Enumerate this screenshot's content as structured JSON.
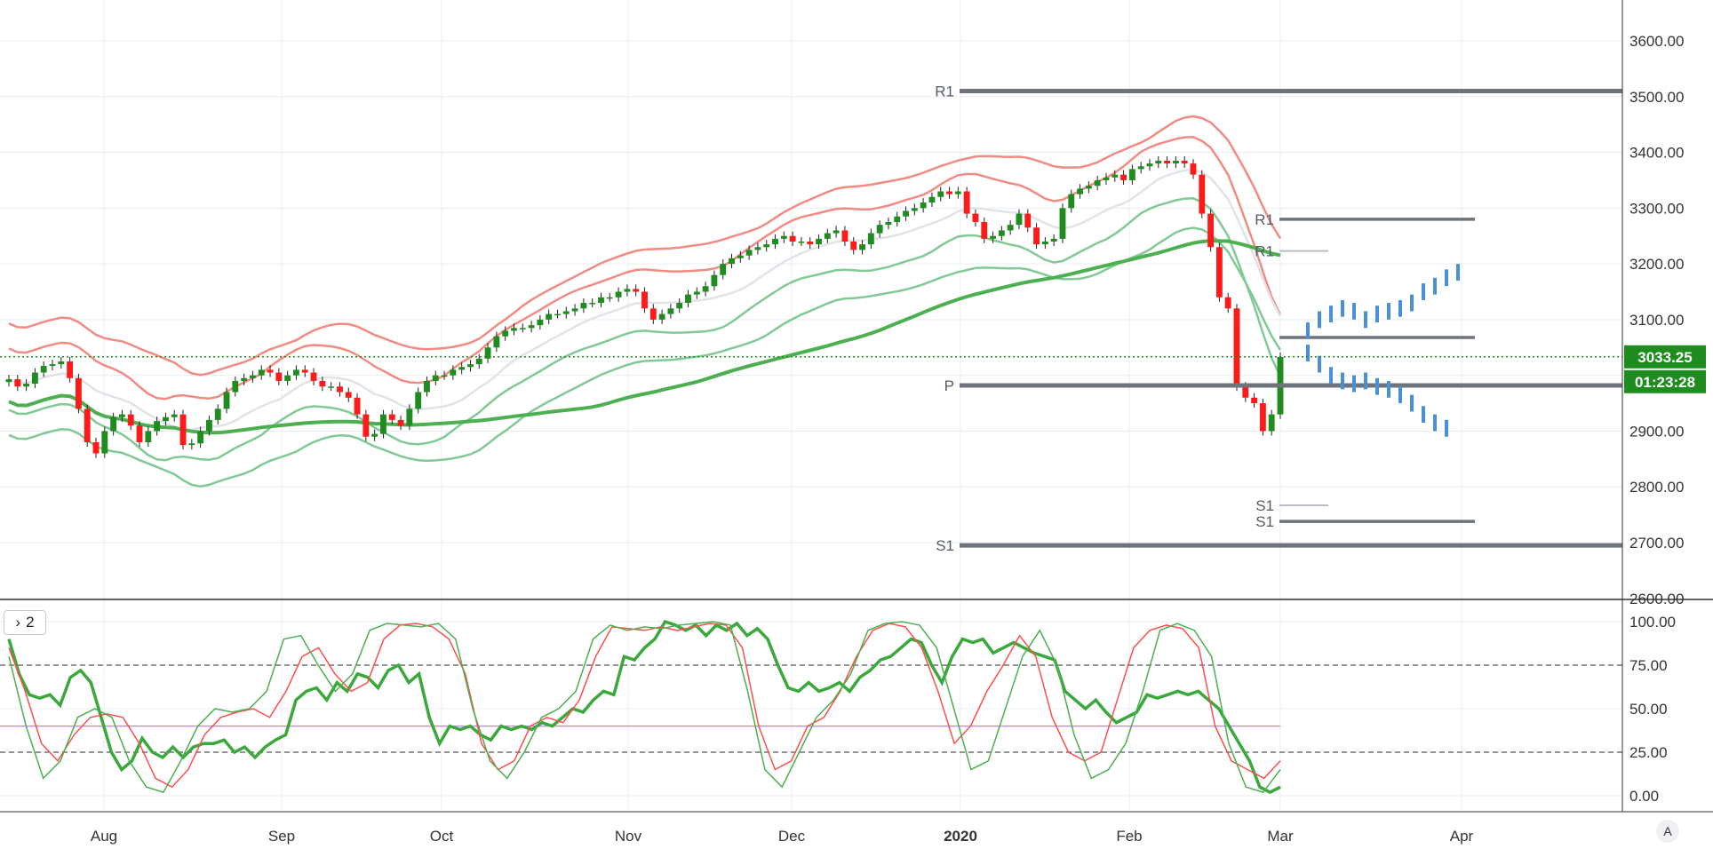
{
  "ui": {
    "pane_toggle_glyph": "›",
    "pane_count": "2",
    "auto_scale_label": "A",
    "price_tag": "3033.25",
    "countdown_tag": "01:23:28"
  },
  "colors": {
    "up": "#1e8c1e",
    "down": "#ff1a1a",
    "band_outer": "#f28b82",
    "band_inner": "#81c995",
    "ma_long": "#4caf50",
    "ma_mid": "#e0e3e8",
    "pivot": "#6f747c",
    "projection": "#4a90d9",
    "grid": "#e9edf2",
    "price_line": "#1e8c1e"
  },
  "chart_data": [
    {
      "type": "candlestick",
      "title": "",
      "xlabel": "",
      "ylabel": "",
      "x_ticks": [
        "Aug",
        "Sep",
        "Oct",
        "Nov",
        "Dec",
        "2020",
        "Feb",
        "Mar",
        "Apr"
      ],
      "y_ticks": [
        2600,
        2700,
        2800,
        2900,
        3000,
        3100,
        3200,
        3300,
        3400,
        3500,
        3600
      ],
      "y_tick_labels": [
        "2600.00",
        "2700.00",
        "2800.00",
        "2900.00",
        "3000.00",
        "3100.00",
        "3200.00",
        "3300.00",
        "3400.00",
        "3500.00",
        "3600.00"
      ],
      "ylim": [
        2600,
        3680
      ],
      "grid": true,
      "last_price": 3033.25,
      "close_series": [
        2993,
        2980,
        2985,
        3005,
        3017,
        3020,
        3025,
        2995,
        2940,
        2880,
        2860,
        2900,
        2925,
        2930,
        2910,
        2880,
        2900,
        2918,
        2925,
        2930,
        2875,
        2878,
        2900,
        2920,
        2940,
        2970,
        2990,
        2995,
        3000,
        3010,
        3005,
        2990,
        3000,
        3010,
        3005,
        2990,
        2980,
        2980,
        2970,
        2960,
        2930,
        2890,
        2895,
        2930,
        2920,
        2910,
        2940,
        2970,
        2990,
        3000,
        3000,
        3010,
        3015,
        3020,
        3030,
        3050,
        3070,
        3080,
        3085,
        3085,
        3090,
        3100,
        3110,
        3110,
        3115,
        3120,
        3130,
        3130,
        3140,
        3140,
        3150,
        3155,
        3150,
        3120,
        3100,
        3110,
        3120,
        3130,
        3145,
        3150,
        3160,
        3180,
        3200,
        3210,
        3215,
        3225,
        3230,
        3235,
        3245,
        3250,
        3240,
        3240,
        3235,
        3245,
        3255,
        3260,
        3240,
        3225,
        3235,
        3255,
        3270,
        3275,
        3285,
        3295,
        3300,
        3310,
        3320,
        3330,
        3325,
        3330,
        3290,
        3275,
        3245,
        3250,
        3260,
        3270,
        3290,
        3265,
        3235,
        3240,
        3245,
        3300,
        3325,
        3335,
        3340,
        3350,
        3355,
        3360,
        3350,
        3370,
        3375,
        3380,
        3385,
        3380,
        3385,
        3380,
        3360,
        3290,
        3230,
        3140,
        3120,
        2980,
        2960,
        2950,
        2900,
        2930,
        3033
      ],
      "series": [
        {
          "kind": "pivot",
          "label": "R1",
          "value": 3510
        },
        {
          "kind": "pivot",
          "label": "P",
          "value": 2982
        },
        {
          "kind": "pivot",
          "label": "S1",
          "value": 2695
        },
        {
          "kind": "pivot",
          "label": "R1",
          "value": 3280
        },
        {
          "kind": "pivot",
          "label": "",
          "value": 3068
        },
        {
          "kind": "pivot",
          "label": "S1",
          "value": 2738
        },
        {
          "kind": "pivot",
          "label": "R1",
          "value": 3223
        },
        {
          "kind": "pivot",
          "label": "S1",
          "value": 2767
        },
        {
          "kind": "projection_up",
          "values": [
            3080,
            3100,
            3110,
            3120,
            3115,
            3100,
            3110,
            3115,
            3120,
            3130,
            3150,
            3160,
            3175,
            3185
          ]
        },
        {
          "kind": "projection_down",
          "values": [
            3040,
            3020,
            3000,
            2990,
            2985,
            2990,
            2980,
            2975,
            2965,
            2950,
            2930,
            2915,
            2905
          ]
        }
      ]
    },
    {
      "type": "line",
      "title": "",
      "y_ticks": [
        0,
        25,
        50,
        75,
        100
      ],
      "y_tick_labels": [
        "0.00",
        "25.00",
        "50.00",
        "75.00",
        "100.00"
      ],
      "ylim": [
        -5,
        105
      ],
      "levels": [
        75,
        40,
        25
      ],
      "grid": true,
      "series": [
        {
          "kind": "thick_green",
          "values": [
            90,
            70,
            58,
            56,
            58,
            52,
            68,
            72,
            65,
            45,
            25,
            15,
            20,
            33,
            25,
            22,
            28,
            22,
            28,
            30,
            30,
            32,
            25,
            28,
            22,
            28,
            32,
            35,
            55,
            60,
            62,
            55,
            65,
            60,
            70,
            68,
            62,
            72,
            75,
            65,
            70,
            45,
            30,
            40,
            38,
            40,
            35,
            32,
            40,
            38,
            40,
            38,
            42,
            40,
            45,
            50,
            48,
            55,
            60,
            58,
            80,
            78,
            85,
            90,
            100,
            98,
            95,
            98,
            92,
            98,
            95,
            99,
            92,
            96,
            90,
            75,
            62,
            60,
            65,
            60,
            62,
            65,
            60,
            68,
            72,
            78,
            80,
            85,
            90,
            88,
            75,
            65,
            80,
            90,
            88,
            90,
            82,
            85,
            88,
            85,
            82,
            80,
            78,
            60,
            55,
            50,
            55,
            48,
            42,
            45,
            48,
            58,
            56,
            58,
            60,
            58,
            60,
            55,
            50,
            40,
            30,
            20,
            5,
            2,
            5
          ]
        },
        {
          "kind": "thin_red",
          "values": [
            85,
            60,
            30,
            20,
            35,
            45,
            47,
            45,
            30,
            10,
            5,
            15,
            35,
            45,
            48,
            50,
            45,
            60,
            80,
            85,
            70,
            60,
            65,
            90,
            98,
            99,
            97,
            90,
            70,
            30,
            15,
            20,
            40,
            45,
            42,
            55,
            80,
            97,
            96,
            95,
            97,
            95,
            97,
            99,
            98,
            85,
            40,
            15,
            20,
            40,
            45,
            60,
            80,
            95,
            99,
            97,
            85,
            60,
            30,
            40,
            60,
            75,
            92,
            80,
            45,
            25,
            20,
            25,
            55,
            85,
            95,
            98,
            96,
            85,
            40,
            20,
            15,
            10,
            20
          ]
        },
        {
          "kind": "thin_green",
          "values": [
            80,
            40,
            10,
            20,
            45,
            50,
            45,
            20,
            5,
            2,
            20,
            40,
            50,
            48,
            50,
            60,
            90,
            92,
            75,
            60,
            70,
            95,
            99,
            98,
            97,
            99,
            90,
            50,
            20,
            10,
            25,
            45,
            50,
            60,
            90,
            98,
            95,
            97,
            96,
            98,
            99,
            100,
            98,
            60,
            15,
            5,
            25,
            45,
            55,
            70,
            95,
            99,
            100,
            98,
            85,
            50,
            15,
            20,
            50,
            80,
            95,
            75,
            35,
            10,
            15,
            30,
            60,
            95,
            99,
            95,
            80,
            30,
            5,
            2,
            15
          ]
        }
      ]
    }
  ]
}
